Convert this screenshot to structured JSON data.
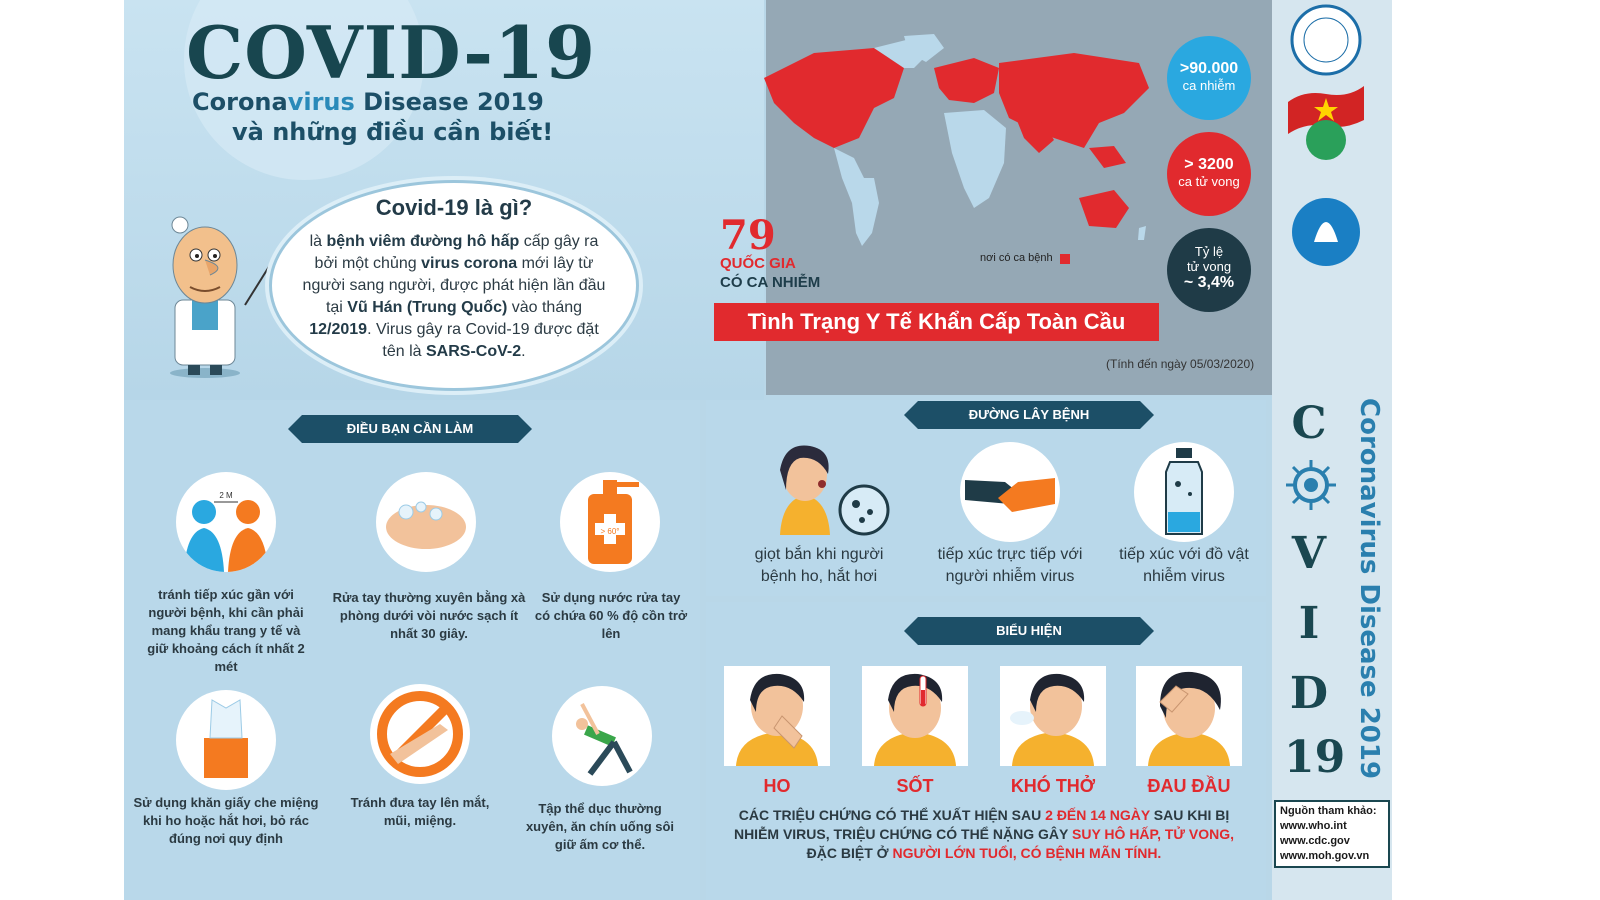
{
  "header": {
    "title": "COVID-19",
    "subtitle_line1_a": "Corona",
    "subtitle_line1_b": "virus",
    "subtitle_line1_c": " Disease 2019",
    "subtitle_line2": "và những điều cần biết!"
  },
  "what_is": {
    "title": "Covid-19 là gì?",
    "p1": "là ",
    "p1_bold": "bệnh viêm đường hô hấp",
    "p2": " cấp gây ra bởi một chủng ",
    "p2_bold": "virus corona",
    "p3": " mới lây từ người sang người, được phát hiện lần đầu tại ",
    "p3_bold": "Vũ Hán (Trung Quốc)",
    "p4": " vào tháng ",
    "p4_bold": "12/2019",
    "p5": ". Virus gây ra Covid-19 được đặt tên là ",
    "p5_bold": "SARS-CoV-2",
    "p6": "."
  },
  "map": {
    "countries_number": "79",
    "countries_label1": "QUỐC GIA",
    "countries_label2": "CÓ CA NHIỄM",
    "legend": "nơi có ca bệnh",
    "banner": "Tình Trạng Y Tế Khẩn Cấp Toàn Cầu",
    "date_note": "(Tính đến ngày 05/03/2020)"
  },
  "stats": {
    "cases_big": ">90.000",
    "cases_small": "ca nhiễm",
    "deaths_big": "> 3200",
    "deaths_small": "ca tử vong",
    "rate_small1": "Tỷ lệ",
    "rate_small2": "tử vong",
    "rate_big": "~ 3,4%"
  },
  "todo": {
    "tag": "ĐIỀU BẠN CẦN LÀM",
    "distance_label": "2 M",
    "sanitizer_label": "> 60°",
    "items": [
      "tránh tiếp xúc gần với người bệnh, khi cần phải mang khẩu trang y tế và giữ khoảng cách ít nhất 2 mét",
      "Rửa tay thường xuyên bằng xà phòng dưới vòi nước sạch ít nhất 30 giây.",
      "Sử dụng nước rửa tay có chứa 60 % độ cồn trở lên",
      "Sử dụng khăn giấy che miệng khi ho hoặc hắt hơi, bỏ rác đúng nơi quy định",
      "Tránh đưa tay lên mắt, mũi, miệng.",
      "Tập thể dục thường xuyên, ăn chín uống sôi giữ ấm cơ thể."
    ]
  },
  "transmission": {
    "tag": "ĐƯỜNG LÂY BỆNH",
    "items": [
      "giọt bắn khi người bệnh ho, hắt hơi",
      "tiếp xúc trực tiếp với người nhiễm virus",
      "tiếp xúc với đồ vật nhiễm virus"
    ]
  },
  "symptoms": {
    "tag": "BIỂU HIỆN",
    "items": [
      "HO",
      "SỐT",
      "KHÓ THỞ",
      "ĐAU ĐẦU"
    ],
    "note_a": "CÁC TRIỆU CHỨNG CÓ THỂ XUẤT HIỆN SAU ",
    "note_red1": "2 ĐẾN 14 NGÀY",
    "note_b": " SAU KHI BỊ NHIỄM VIRUS, TRIỆU CHỨNG CÓ THỂ NẶNG GÂY ",
    "note_red2": "SUY HÔ HẤP, TỬ VONG,",
    "note_c": " ĐẶC BIỆT Ở ",
    "note_red3": "NGƯỜI LỚN TUỔI, CÓ BỆNH MÃN TÍNH."
  },
  "side": {
    "vertical_title": "Coronavirus Disease 2019",
    "letters": [
      "C",
      "V",
      "I",
      "D",
      "19"
    ],
    "refs_title": "Nguồn tham khảo:",
    "refs": [
      "www.who.int",
      "www.cdc.gov",
      "www.moh.gov.vn"
    ]
  },
  "colors": {
    "red": "#e12a2e",
    "navy": "#1c4f67",
    "teal": "#1a4750",
    "cyan": "#2aa8e0",
    "dark": "#1f3b47"
  }
}
